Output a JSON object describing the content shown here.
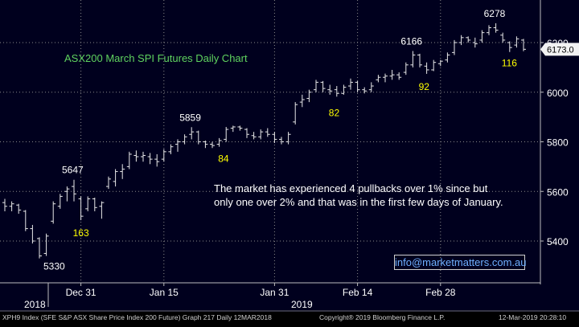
{
  "chart_data": {
    "type": "ohlc",
    "title": "ASX200 March SPI Futures Daily Chart",
    "colors": {
      "background": "#00001e",
      "bars": "#e8e8e8",
      "grid": "#8a8a8a",
      "title": "#5fd35f",
      "annotation": "#ffff00",
      "callout": "#ffffff",
      "price_tag_bg": "#f2f2f2",
      "price_tag_text": "#000000"
    },
    "y_axis": {
      "position": "right",
      "ylim": [
        5250,
        6340
      ],
      "ticks": [
        5400,
        5600,
        5800,
        6000,
        6200
      ],
      "grid": "dotted horizontal"
    },
    "x_axis": {
      "ticks": [
        "Dec 31",
        "Jan 15",
        "Jan 31",
        "Feb 14",
        "Feb 28"
      ],
      "years": [
        "2018",
        "2019"
      ],
      "grid": "dotted vertical"
    },
    "last_price": "6173.0",
    "bars": [
      {
        "o": 5555,
        "h": 5570,
        "l": 5520,
        "c": 5540
      },
      {
        "o": 5540,
        "h": 5560,
        "l": 5520,
        "c": 5550
      },
      {
        "o": 5545,
        "h": 5550,
        "l": 5510,
        "c": 5525
      },
      {
        "o": 5520,
        "h": 5525,
        "l": 5440,
        "c": 5450
      },
      {
        "o": 5450,
        "h": 5465,
        "l": 5390,
        "c": 5400
      },
      {
        "o": 5410,
        "h": 5415,
        "l": 5330,
        "c": 5340
      },
      {
        "o": 5350,
        "h": 5430,
        "l": 5340,
        "c": 5420
      },
      {
        "o": 5480,
        "h": 5560,
        "l": 5470,
        "c": 5550
      },
      {
        "o": 5540,
        "h": 5590,
        "l": 5530,
        "c": 5580
      },
      {
        "o": 5600,
        "h": 5620,
        "l": 5560,
        "c": 5610
      },
      {
        "o": 5620,
        "h": 5647,
        "l": 5560,
        "c": 5590
      },
      {
        "o": 5570,
        "h": 5580,
        "l": 5484,
        "c": 5500
      },
      {
        "o": 5530,
        "h": 5580,
        "l": 5520,
        "c": 5570
      },
      {
        "o": 5570,
        "h": 5575,
        "l": 5520,
        "c": 5535
      },
      {
        "o": 5540,
        "h": 5560,
        "l": 5490,
        "c": 5555
      },
      {
        "o": 5620,
        "h": 5660,
        "l": 5610,
        "c": 5650
      },
      {
        "o": 5640,
        "h": 5690,
        "l": 5620,
        "c": 5680
      },
      {
        "o": 5680,
        "h": 5710,
        "l": 5650,
        "c": 5690
      },
      {
        "o": 5700,
        "h": 5760,
        "l": 5690,
        "c": 5750
      },
      {
        "o": 5745,
        "h": 5765,
        "l": 5720,
        "c": 5740
      },
      {
        "o": 5740,
        "h": 5760,
        "l": 5720,
        "c": 5745
      },
      {
        "o": 5740,
        "h": 5755,
        "l": 5710,
        "c": 5730
      },
      {
        "o": 5730,
        "h": 5750,
        "l": 5700,
        "c": 5720
      },
      {
        "o": 5730,
        "h": 5770,
        "l": 5720,
        "c": 5760
      },
      {
        "o": 5760,
        "h": 5790,
        "l": 5750,
        "c": 5780
      },
      {
        "o": 5790,
        "h": 5810,
        "l": 5760,
        "c": 5800
      },
      {
        "o": 5800,
        "h": 5830,
        "l": 5790,
        "c": 5820
      },
      {
        "o": 5830,
        "h": 5859,
        "l": 5810,
        "c": 5840
      },
      {
        "o": 5840,
        "h": 5845,
        "l": 5790,
        "c": 5800
      },
      {
        "o": 5800,
        "h": 5805,
        "l": 5775,
        "c": 5790
      },
      {
        "o": 5790,
        "h": 5800,
        "l": 5775,
        "c": 5785
      },
      {
        "o": 5790,
        "h": 5815,
        "l": 5780,
        "c": 5805
      },
      {
        "o": 5810,
        "h": 5860,
        "l": 5800,
        "c": 5850
      },
      {
        "o": 5855,
        "h": 5865,
        "l": 5840,
        "c": 5860
      },
      {
        "o": 5860,
        "h": 5865,
        "l": 5845,
        "c": 5855
      },
      {
        "o": 5850,
        "h": 5855,
        "l": 5815,
        "c": 5830
      },
      {
        "o": 5825,
        "h": 5840,
        "l": 5810,
        "c": 5820
      },
      {
        "o": 5820,
        "h": 5850,
        "l": 5810,
        "c": 5840
      },
      {
        "o": 5840,
        "h": 5855,
        "l": 5820,
        "c": 5830
      },
      {
        "o": 5830,
        "h": 5840,
        "l": 5795,
        "c": 5810
      },
      {
        "o": 5810,
        "h": 5820,
        "l": 5790,
        "c": 5800
      },
      {
        "o": 5800,
        "h": 5840,
        "l": 5790,
        "c": 5830
      },
      {
        "o": 5880,
        "h": 5960,
        "l": 5870,
        "c": 5950
      },
      {
        "o": 5960,
        "h": 5990,
        "l": 5940,
        "c": 5970
      },
      {
        "o": 5975,
        "h": 6010,
        "l": 5960,
        "c": 6000
      },
      {
        "o": 6010,
        "h": 6050,
        "l": 6000,
        "c": 6040
      },
      {
        "o": 6040,
        "h": 6045,
        "l": 6000,
        "c": 6015
      },
      {
        "o": 6010,
        "h": 6030,
        "l": 5990,
        "c": 6005
      },
      {
        "o": 6010,
        "h": 6025,
        "l": 5982,
        "c": 5995
      },
      {
        "o": 5995,
        "h": 6030,
        "l": 5990,
        "c": 6020
      },
      {
        "o": 6025,
        "h": 6055,
        "l": 6010,
        "c": 6040
      },
      {
        "o": 6040,
        "h": 6045,
        "l": 6000,
        "c": 6010
      },
      {
        "o": 6010,
        "h": 6020,
        "l": 5995,
        "c": 6005
      },
      {
        "o": 6010,
        "h": 6040,
        "l": 6000,
        "c": 6025
      },
      {
        "o": 6050,
        "h": 6070,
        "l": 6040,
        "c": 6060
      },
      {
        "o": 6060,
        "h": 6075,
        "l": 6040,
        "c": 6065
      },
      {
        "o": 6065,
        "h": 6090,
        "l": 6050,
        "c": 6070
      },
      {
        "o": 6070,
        "h": 6080,
        "l": 6050,
        "c": 6060
      },
      {
        "o": 6080,
        "h": 6120,
        "l": 6070,
        "c": 6110
      },
      {
        "o": 6110,
        "h": 6166,
        "l": 6100,
        "c": 6150
      },
      {
        "o": 6150,
        "h": 6155,
        "l": 6100,
        "c": 6110
      },
      {
        "o": 6105,
        "h": 6120,
        "l": 6074,
        "c": 6090
      },
      {
        "o": 6090,
        "h": 6130,
        "l": 6085,
        "c": 6120
      },
      {
        "o": 6115,
        "h": 6130,
        "l": 6105,
        "c": 6125
      },
      {
        "o": 6130,
        "h": 6160,
        "l": 6120,
        "c": 6150
      },
      {
        "o": 6160,
        "h": 6210,
        "l": 6150,
        "c": 6200
      },
      {
        "o": 6200,
        "h": 6230,
        "l": 6190,
        "c": 6220
      },
      {
        "o": 6220,
        "h": 6225,
        "l": 6200,
        "c": 6210
      },
      {
        "o": 6200,
        "h": 6220,
        "l": 6180,
        "c": 6195
      },
      {
        "o": 6210,
        "h": 6250,
        "l": 6200,
        "c": 6240
      },
      {
        "o": 6240,
        "h": 6270,
        "l": 6230,
        "c": 6260
      },
      {
        "o": 6260,
        "h": 6278,
        "l": 6240,
        "c": 6250
      },
      {
        "o": 6230,
        "h": 6240,
        "l": 6200,
        "c": 6210
      },
      {
        "o": 6200,
        "h": 6205,
        "l": 6162,
        "c": 6180
      },
      {
        "o": 6190,
        "h": 6225,
        "l": 6180,
        "c": 6215
      },
      {
        "o": 6210,
        "h": 6215,
        "l": 6165,
        "c": 6173
      }
    ],
    "high_low_labels": [
      "5647",
      "5330",
      "5859",
      "6166",
      "6278"
    ],
    "pullback_labels": [
      "163",
      "84",
      "82",
      "92",
      "116"
    ],
    "callout": [
      "The market has experienced 4 pullbacks over 1% since but",
      "only one over 2% and that was in the first few days of January."
    ]
  },
  "contact": "info@marketmatters.com.au",
  "footer": {
    "left": "XPH9 Index (SFE S&P ASX Share Price Index 200 Future) Graph 217  Daily 12MAR2018",
    "middle": "Copyright® 2019 Bloomberg Finance L.P.",
    "right": "12-Mar-2019 20:28:10"
  }
}
